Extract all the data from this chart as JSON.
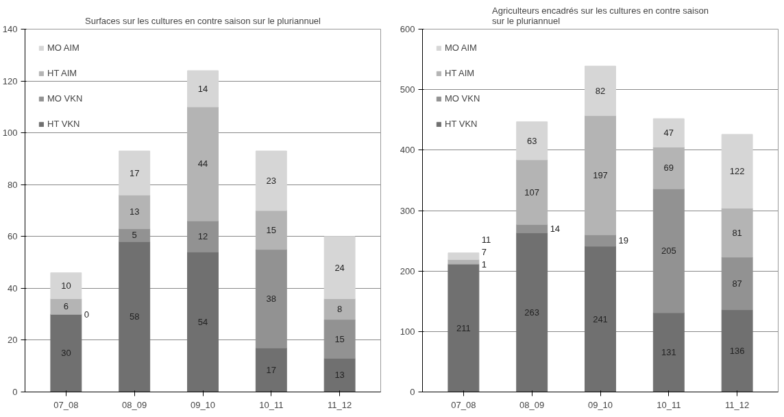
{
  "chart_data": [
    {
      "type": "bar",
      "title": "Surfaces sur les cultures en contre saison sur le pluriannuel",
      "categories": [
        "07_08",
        "08_09",
        "09_10",
        "10_11",
        "11_12"
      ],
      "stacked": true,
      "data_labels": true,
      "grid": "y",
      "legend": "top left",
      "ylim": [
        0,
        140
      ],
      "yticks": [
        0,
        20,
        40,
        60,
        80,
        100,
        120,
        140
      ],
      "series": [
        {
          "name": "HT VKN",
          "color": "#707070",
          "values": [
            30,
            58,
            54,
            17,
            13
          ]
        },
        {
          "name": "MO VKN",
          "color": "#929292",
          "values": [
            0,
            5,
            12,
            38,
            15
          ]
        },
        {
          "name": "HT AIM",
          "color": "#b4b4b4",
          "values": [
            6,
            13,
            44,
            15,
            8
          ]
        },
        {
          "name": "MO AIM",
          "color": "#d6d6d6",
          "values": [
            10,
            17,
            14,
            23,
            24
          ]
        }
      ]
    },
    {
      "type": "bar",
      "title": "Agriculteurs encadrés sur les cultures en contre saison\nsur le pluriannuel",
      "categories": [
        "07_08",
        "08_09",
        "09_10",
        "10_11",
        "11_12"
      ],
      "stacked": true,
      "data_labels": true,
      "grid": "y",
      "legend": "top left",
      "ylim": [
        0,
        600
      ],
      "yticks": [
        0,
        100,
        200,
        300,
        400,
        500,
        600
      ],
      "series": [
        {
          "name": "HT VKN",
          "color": "#707070",
          "values": [
            211,
            263,
            241,
            131,
            136
          ]
        },
        {
          "name": "MO VKN",
          "color": "#929292",
          "values": [
            1,
            14,
            19,
            205,
            87
          ]
        },
        {
          "name": "HT AIM",
          "color": "#b4b4b4",
          "values": [
            7,
            107,
            197,
            69,
            81
          ]
        },
        {
          "name": "MO AIM",
          "color": "#d6d6d6",
          "values": [
            11,
            63,
            82,
            47,
            122
          ]
        }
      ]
    }
  ]
}
